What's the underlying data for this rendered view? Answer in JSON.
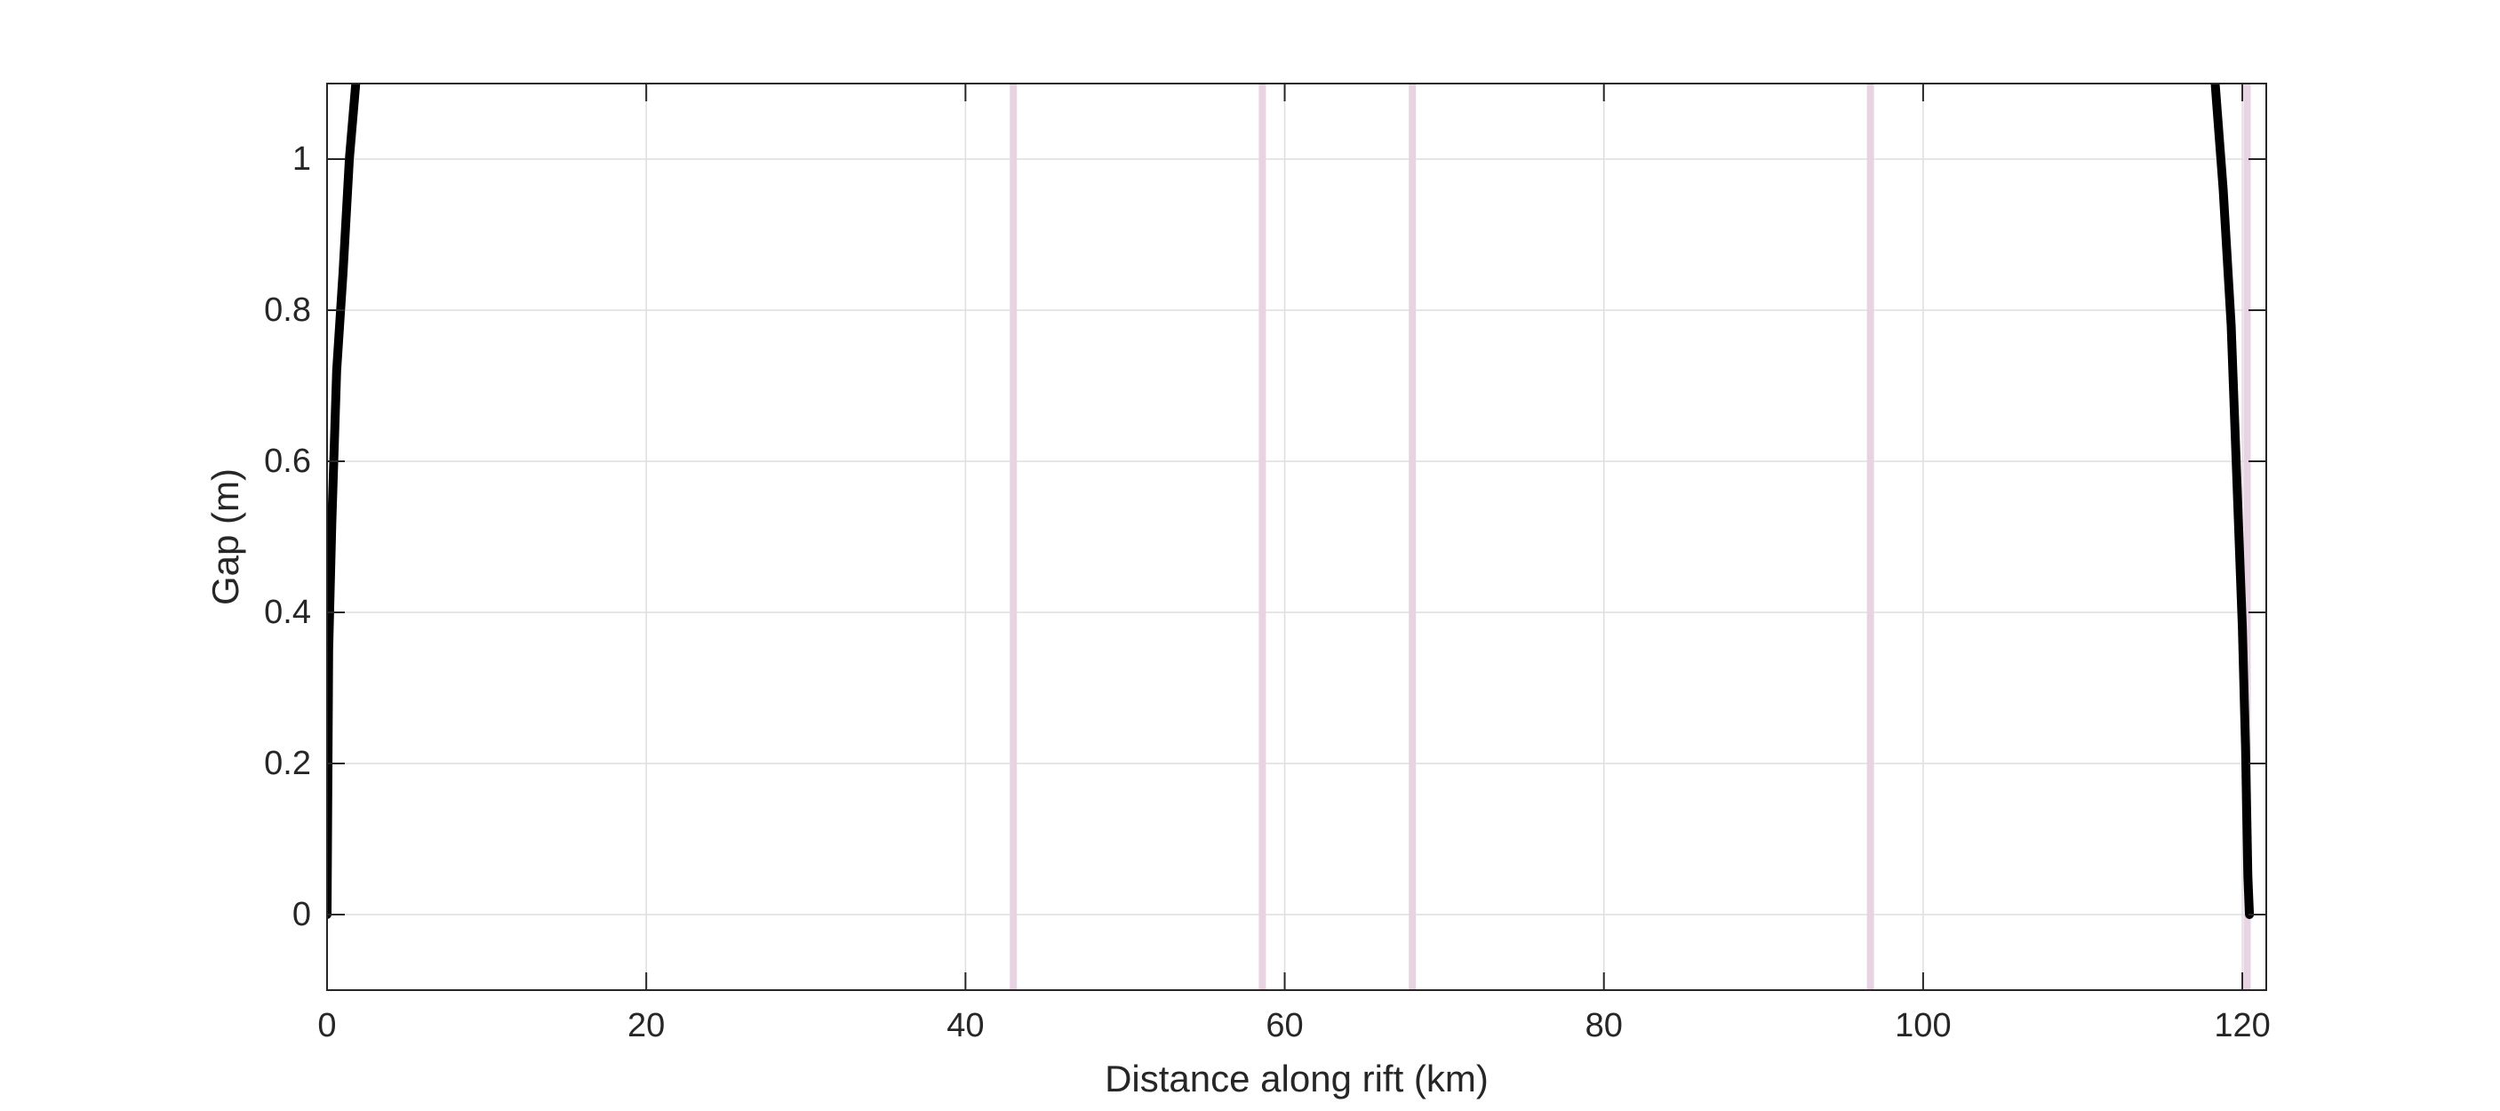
{
  "chart_data": {
    "type": "line",
    "xlabel": "Distance along rift (km)",
    "ylabel": "Gap (m)",
    "xlim": [
      0,
      121.5
    ],
    "ylim": [
      -0.1,
      1.1
    ],
    "xticks": [
      0,
      20,
      40,
      60,
      80,
      100,
      120
    ],
    "yticks": [
      0,
      0.2,
      0.4,
      0.6,
      0.8,
      1
    ],
    "xtick_labels": [
      "0",
      "20",
      "40",
      "60",
      "80",
      "100",
      "120"
    ],
    "ytick_labels": [
      "0",
      "0.2",
      "0.4",
      "0.6",
      "0.8",
      "1"
    ],
    "grid": true,
    "colors": {
      "line": "#000000",
      "markers": "#e8d3e3",
      "grid": "#dedede",
      "axes": "#262626"
    },
    "vertical_markers": [
      43.0,
      58.6,
      68.0,
      96.7,
      120.3
    ],
    "series": [
      {
        "x": [
          0.0,
          0.1,
          0.3,
          0.6,
          1.0,
          1.4,
          1.8
        ],
        "y": [
          0.0,
          0.35,
          0.52,
          0.72,
          0.85,
          1.0,
          1.1
        ]
      },
      {
        "x": [
          118.3,
          118.8,
          119.3,
          119.7,
          120.0,
          120.2,
          120.35,
          120.45
        ],
        "y": [
          1.1,
          0.96,
          0.78,
          0.55,
          0.38,
          0.22,
          0.05,
          0.0
        ]
      }
    ]
  }
}
